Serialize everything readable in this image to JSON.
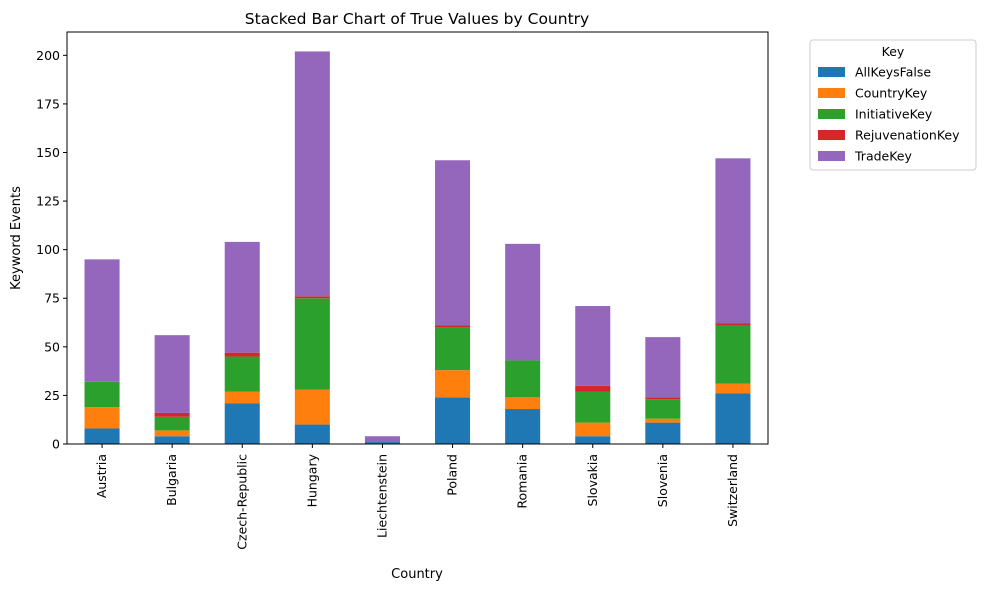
{
  "chart_data": {
    "type": "bar",
    "stacked": true,
    "title": "Stacked Bar Chart of True Values by Country",
    "xlabel": "Country",
    "ylabel": "Keyword Events",
    "ylim": [
      0,
      212
    ],
    "yticks": [
      0,
      25,
      50,
      75,
      100,
      125,
      150,
      175,
      200
    ],
    "grid": false,
    "legend_title": "Key",
    "legend_position": "outside-top-right",
    "categories": [
      "Austria",
      "Bulgaria",
      "Czech-Republic",
      "Hungary",
      "Liechtenstein",
      "Poland",
      "Romania",
      "Slovakia",
      "Slovenia",
      "Switzerland"
    ],
    "series": [
      {
        "name": "AllKeysFalse",
        "color": "#1f77b4",
        "values": [
          8,
          4,
          21,
          10,
          1,
          24,
          18,
          4,
          11,
          26
        ]
      },
      {
        "name": "CountryKey",
        "color": "#ff7f0e",
        "values": [
          11,
          3,
          6,
          18,
          0,
          14,
          6,
          7,
          2,
          5
        ]
      },
      {
        "name": "InitiativeKey",
        "color": "#2ca02c",
        "values": [
          13,
          7,
          18,
          47,
          0,
          22,
          19,
          16,
          10,
          30
        ]
      },
      {
        "name": "RejuvenationKey",
        "color": "#d62728",
        "values": [
          0,
          2,
          2,
          1,
          0,
          1,
          0,
          3,
          1,
          1
        ]
      },
      {
        "name": "TradeKey",
        "color": "#9467bd",
        "values": [
          63,
          40,
          57,
          126,
          3,
          85,
          60,
          41,
          31,
          85
        ]
      }
    ]
  }
}
